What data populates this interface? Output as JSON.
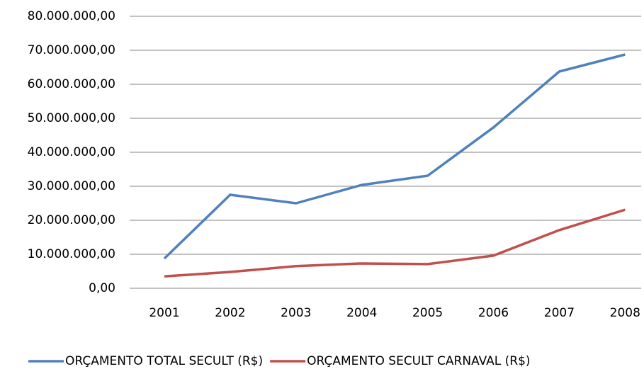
{
  "chart_data": {
    "type": "line",
    "categories": [
      "2001",
      "2002",
      "2003",
      "2004",
      "2005",
      "2006",
      "2007",
      "2008"
    ],
    "series": [
      {
        "name": "ORÇAMENTO TOTAL SECULT (R$)",
        "color": "#4f81bd",
        "values": [
          8750000,
          27500000,
          25000000,
          30400000,
          33100000,
          47300000,
          63750000,
          68750000
        ]
      },
      {
        "name": "ORÇAMENTO SECULT CARNAVAL (R$)",
        "color": "#c0504d",
        "values": [
          3500000,
          4800000,
          6500000,
          7300000,
          7100000,
          9600000,
          17100000,
          23100000
        ]
      }
    ],
    "ylim": [
      0,
      80000000
    ],
    "yticks": [
      {
        "value": 0,
        "label": "0,00"
      },
      {
        "value": 10000000,
        "label": "10.000.000,00"
      },
      {
        "value": 20000000,
        "label": "20.000.000,00"
      },
      {
        "value": 30000000,
        "label": "30.000.000,00"
      },
      {
        "value": 40000000,
        "label": "40.000.000,00"
      },
      {
        "value": 50000000,
        "label": "50.000.000,00"
      },
      {
        "value": 60000000,
        "label": "60.000.000,00"
      },
      {
        "value": 70000000,
        "label": "70.000.000,00"
      },
      {
        "value": 80000000,
        "label": "80.000.000,00"
      }
    ],
    "grid": true,
    "legend": "bottom"
  }
}
